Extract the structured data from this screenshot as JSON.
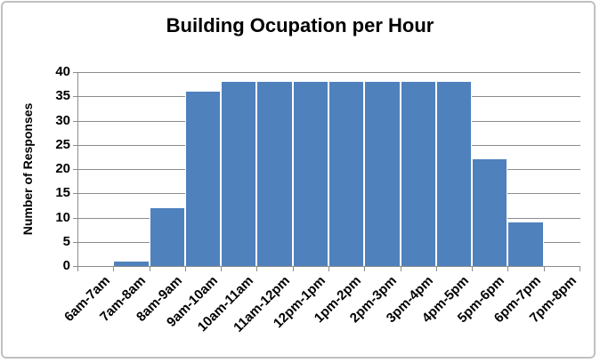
{
  "chart_data": {
    "type": "bar",
    "title": "Building Ocupation per Hour",
    "xlabel": "",
    "ylabel": "Number of Responses",
    "categories": [
      "6am-7am",
      "7am-8am",
      "8am-9am",
      "9am-10am",
      "10am-11am",
      "11am-12pm",
      "12pm-1pm",
      "1pm-2pm",
      "2pm-3pm",
      "3pm-4pm",
      "4pm-5pm",
      "5pm-6pm",
      "6pm-7pm",
      "7pm-8pm"
    ],
    "values": [
      0,
      1,
      12,
      36,
      38,
      38,
      38,
      38,
      38,
      38,
      38,
      22,
      9,
      0
    ],
    "ylim": [
      0,
      40
    ],
    "yticks": [
      0,
      5,
      10,
      15,
      20,
      25,
      30,
      35,
      40
    ],
    "grid": "horizontal",
    "legend": "none",
    "bar_color": "#4F81BD",
    "bar_separator_color": "#FFFFFF",
    "gridline_color": "#8C8C8C",
    "axis_color": "#8C8C8C",
    "text_color": "#000000",
    "frame_border_color": "#C0C0C0",
    "background_color": "#FFFFFF"
  }
}
